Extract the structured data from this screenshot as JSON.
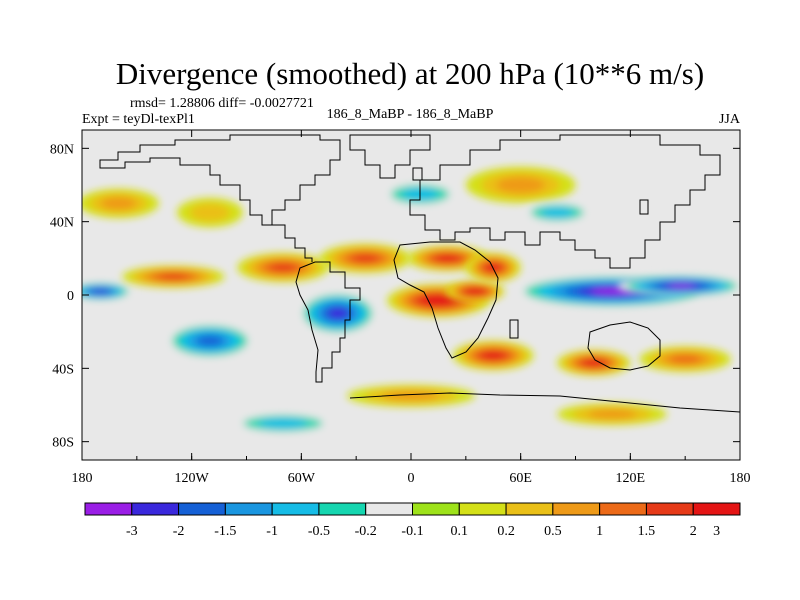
{
  "chart_data": {
    "type": "heatmap",
    "title": "Divergence (smoothed) at 200 hPa (10**6 m/s)",
    "stats_text": "rmsd= 1.28806 diff= -0.0027721",
    "experiment": "Expt = teyDl-texPl1",
    "comparison": "186_8_MaBP - 186_8_MaBP",
    "season": "JJA",
    "x_ticks": [
      {
        "value": -180,
        "label": "180"
      },
      {
        "value": -120,
        "label": "120W"
      },
      {
        "value": -60,
        "label": "60W"
      },
      {
        "value": 0,
        "label": "0"
      },
      {
        "value": 60,
        "label": "60E"
      },
      {
        "value": 120,
        "label": "120E"
      },
      {
        "value": 180,
        "label": "180"
      }
    ],
    "y_ticks": [
      {
        "value": 80,
        "label": "80N"
      },
      {
        "value": 40,
        "label": "40N"
      },
      {
        "value": 0,
        "label": "0"
      },
      {
        "value": -40,
        "label": "40S"
      },
      {
        "value": -80,
        "label": "80S"
      }
    ],
    "xlim": [
      -180,
      180
    ],
    "ylim": [
      -90,
      90
    ],
    "colorbar": {
      "labels": [
        "-3",
        "-2",
        "-1.5",
        "-1",
        "-0.5",
        "-0.2",
        "-0.1",
        "0.1",
        "0.2",
        "0.5",
        "1",
        "1.5",
        "2",
        "3"
      ],
      "colors": [
        "#9a1ee6",
        "#3a28dc",
        "#1560d6",
        "#1a96e0",
        "#16bce6",
        "#16d6b0",
        "#e8e8e8",
        "#9ee21a",
        "#d4e018",
        "#eac018",
        "#ee9a18",
        "#ec6a18",
        "#e63a18",
        "#e41414"
      ]
    },
    "features": [
      {
        "name": "tropical Pacific-Indian convergence band",
        "lon": 110,
        "lat": 2,
        "rx": 55,
        "ry": 9,
        "value": -3
      },
      {
        "name": "central Pacific convergence",
        "lon": 148,
        "lat": 5,
        "rx": 35,
        "ry": 6,
        "value": -3
      },
      {
        "name": "central Pacific convergence west",
        "lon": -170,
        "lat": 2,
        "rx": 18,
        "ry": 5,
        "value": -2
      },
      {
        "name": "equatorial Atlantic-Africa divergence",
        "lon": 15,
        "lat": -3,
        "rx": 28,
        "ry": 9,
        "value": 3
      },
      {
        "name": "Indian Ocean divergence",
        "lon": 35,
        "lat": 2,
        "rx": 16,
        "ry": 6,
        "value": 3
      },
      {
        "name": "Sahara divergence",
        "lon": 20,
        "lat": 20,
        "rx": 22,
        "ry": 7,
        "value": 2
      },
      {
        "name": "Arabian divergence",
        "lon": 45,
        "lat": 15,
        "rx": 15,
        "ry": 8,
        "value": 2
      },
      {
        "name": "North Atlantic divergence",
        "lon": -25,
        "lat": 20,
        "rx": 25,
        "ry": 8,
        "value": 1.5
      },
      {
        "name": "Caribbean divergence",
        "lon": -70,
        "lat": 15,
        "rx": 25,
        "ry": 8,
        "value": 1.5
      },
      {
        "name": "East Pacific divergence",
        "lon": -130,
        "lat": 10,
        "rx": 28,
        "ry": 6,
        "value": 1.5
      },
      {
        "name": "South Atlantic convergence",
        "lon": -40,
        "lat": -10,
        "rx": 22,
        "ry": 12,
        "value": -2
      },
      {
        "name": "South Pacific convergence",
        "lon": -110,
        "lat": -25,
        "rx": 25,
        "ry": 10,
        "value": -1.5
      },
      {
        "name": "Indian Ocean subtropical divergence",
        "lon": 45,
        "lat": -33,
        "rx": 22,
        "ry": 8,
        "value": 2
      },
      {
        "name": "Australian subtropical divergence",
        "lon": 100,
        "lat": -37,
        "rx": 20,
        "ry": 7,
        "value": 2
      },
      {
        "name": "South Pacific subtropical divergence",
        "lon": 150,
        "lat": -35,
        "rx": 25,
        "ry": 7,
        "value": 1
      },
      {
        "name": "Southern Ocean divergence",
        "lon": 0,
        "lat": -55,
        "rx": 35,
        "ry": 6,
        "value": 0.5
      },
      {
        "name": "Southern Ocean divergence east",
        "lon": 110,
        "lat": -65,
        "rx": 30,
        "ry": 6,
        "value": 0.5
      },
      {
        "name": "Siberia divergence",
        "lon": 60,
        "lat": 60,
        "rx": 30,
        "ry": 10,
        "value": 0.5
      },
      {
        "name": "North Pacific divergence",
        "lon": -160,
        "lat": 50,
        "rx": 22,
        "ry": 8,
        "value": 0.5
      },
      {
        "name": "North America divergence",
        "lon": -110,
        "lat": 45,
        "rx": 18,
        "ry": 8,
        "value": 0.2
      },
      {
        "name": "Europe convergence",
        "lon": 5,
        "lat": 55,
        "rx": 22,
        "ry": 7,
        "value": -0.5
      },
      {
        "name": "Central Asia convergence",
        "lon": 80,
        "lat": 45,
        "rx": 20,
        "ry": 6,
        "value": -0.5
      },
      {
        "name": "Antarctic convergence",
        "lon": -70,
        "lat": -70,
        "rx": 30,
        "ry": 6,
        "value": -0.5
      }
    ]
  }
}
